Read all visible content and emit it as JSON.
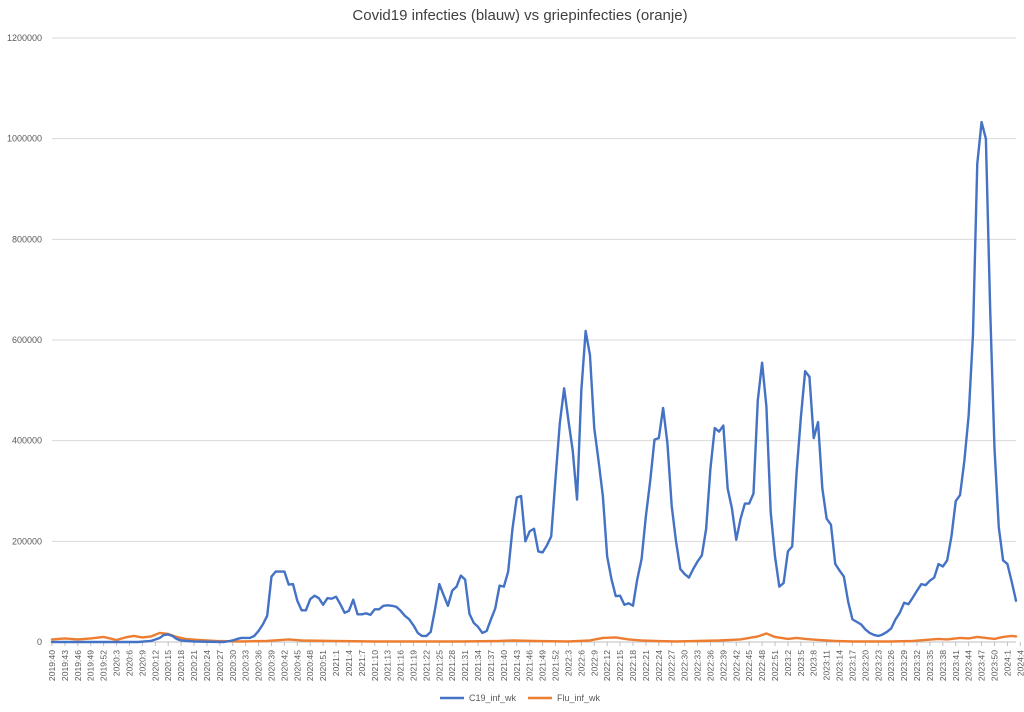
{
  "chart_data": {
    "type": "line",
    "title": "Covid19 infecties (blauw) vs griepinfecties (oranje)",
    "xlabel": "",
    "ylabel": "",
    "ylim": [
      0,
      1200000
    ],
    "yticks": [
      "0",
      "200000",
      "400000",
      "600000",
      "800000",
      "1000000",
      "1200000"
    ],
    "grid": true,
    "legend_position": "bottom",
    "x_tick_labels": [
      "2019:40",
      "2019:43",
      "2019:46",
      "2019:49",
      "2019:52",
      "2020:3",
      "2020:6",
      "2020:9",
      "2020:12",
      "2020:15",
      "2020:18",
      "2020:21",
      "2020:24",
      "2020:27",
      "2020:30",
      "2020:33",
      "2020:36",
      "2020:39",
      "2020:42",
      "2020:45",
      "2020:48",
      "2020:51",
      "2021:1",
      "2021:4",
      "2021:7",
      "2021:10",
      "2021:13",
      "2021:16",
      "2021:19",
      "2021:22",
      "2021:25",
      "2021:28",
      "2021:31",
      "2021:34",
      "2021:37",
      "2021:40",
      "2021:43",
      "2021:46",
      "2021:49",
      "2021:52",
      "2022:3",
      "2022:6",
      "2022:9",
      "2022:12",
      "2022:15",
      "2022:18",
      "2022:21",
      "2022:24",
      "2022:27",
      "2022:30",
      "2022:33",
      "2022:36",
      "2022:39",
      "2022:42",
      "2022:45",
      "2022:48",
      "2022:51",
      "2023:2",
      "2023:5",
      "2023:8",
      "2023:11",
      "2023:14",
      "2023:17",
      "2023:20",
      "2023:23",
      "2023:26",
      "2023:29",
      "2023:32",
      "2023:35",
      "2023:38",
      "2023:41",
      "2023:44",
      "2023:47",
      "2023:50",
      "2024:1",
      "2024:4"
    ],
    "series": [
      {
        "name": "C19_inf_wk",
        "color": "#4472C4",
        "points": [
          [
            0,
            0
          ],
          [
            20,
            0
          ],
          [
            23,
            2000
          ],
          [
            25,
            8000
          ],
          [
            26,
            14000
          ],
          [
            27,
            15000
          ],
          [
            28,
            12000
          ],
          [
            29,
            6000
          ],
          [
            30,
            3000
          ],
          [
            33,
            1000
          ],
          [
            40,
            0
          ],
          [
            42,
            3000
          ],
          [
            43,
            6000
          ],
          [
            44,
            8000
          ],
          [
            46,
            8000
          ],
          [
            47,
            12000
          ],
          [
            48,
            22000
          ],
          [
            49,
            35000
          ],
          [
            50,
            52000
          ],
          [
            51,
            130000
          ],
          [
            52,
            140000
          ],
          [
            54,
            140000
          ],
          [
            55,
            114000
          ],
          [
            56,
            115000
          ],
          [
            57,
            82000
          ],
          [
            58,
            63000
          ],
          [
            59,
            63000
          ],
          [
            60,
            85000
          ],
          [
            61,
            92000
          ],
          [
            62,
            87000
          ],
          [
            63,
            74000
          ],
          [
            64,
            87000
          ],
          [
            65,
            86000
          ],
          [
            66,
            90000
          ],
          [
            67,
            75000
          ],
          [
            68,
            58000
          ],
          [
            69,
            62000
          ],
          [
            70,
            84000
          ],
          [
            71,
            55000
          ],
          [
            72,
            55000
          ],
          [
            73,
            57000
          ],
          [
            74,
            54000
          ],
          [
            75,
            65000
          ],
          [
            76,
            65000
          ],
          [
            77,
            72000
          ],
          [
            78,
            73000
          ],
          [
            79,
            72000
          ],
          [
            80,
            70000
          ],
          [
            81,
            62000
          ],
          [
            82,
            52000
          ],
          [
            83,
            45000
          ],
          [
            84,
            33000
          ],
          [
            85,
            18000
          ],
          [
            86,
            12000
          ],
          [
            87,
            12000
          ],
          [
            88,
            20000
          ],
          [
            89,
            65000
          ],
          [
            90,
            115000
          ],
          [
            91,
            93000
          ],
          [
            92,
            72000
          ],
          [
            93,
            102000
          ],
          [
            94,
            110000
          ],
          [
            95,
            132000
          ],
          [
            96,
            124000
          ],
          [
            97,
            56000
          ],
          [
            98,
            38000
          ],
          [
            99,
            30000
          ],
          [
            100,
            18000
          ],
          [
            101,
            22000
          ],
          [
            102,
            45000
          ],
          [
            103,
            67000
          ],
          [
            104,
            112000
          ],
          [
            105,
            110000
          ],
          [
            106,
            140000
          ],
          [
            107,
            225000
          ],
          [
            108,
            287000
          ],
          [
            109,
            290000
          ],
          [
            110,
            200000
          ],
          [
            111,
            220000
          ],
          [
            112,
            225000
          ],
          [
            113,
            180000
          ],
          [
            114,
            178000
          ],
          [
            115,
            192000
          ],
          [
            116,
            210000
          ],
          [
            117,
            325000
          ],
          [
            118,
            435000
          ],
          [
            119,
            504000
          ],
          [
            120,
            440000
          ],
          [
            121,
            380000
          ],
          [
            122,
            283000
          ],
          [
            123,
            500000
          ],
          [
            124,
            618000
          ],
          [
            125,
            570000
          ],
          [
            126,
            425000
          ],
          [
            127,
            360000
          ],
          [
            128,
            290000
          ],
          [
            129,
            170000
          ],
          [
            130,
            125000
          ],
          [
            131,
            91000
          ],
          [
            132,
            92000
          ],
          [
            133,
            74000
          ],
          [
            134,
            77000
          ],
          [
            135,
            72000
          ],
          [
            136,
            125000
          ],
          [
            137,
            165000
          ],
          [
            138,
            250000
          ],
          [
            139,
            320000
          ],
          [
            140,
            402000
          ],
          [
            141,
            405000
          ],
          [
            142,
            465000
          ],
          [
            143,
            395000
          ],
          [
            144,
            270000
          ],
          [
            145,
            200000
          ],
          [
            146,
            145000
          ],
          [
            147,
            135000
          ],
          [
            148,
            128000
          ],
          [
            149,
            145000
          ],
          [
            150,
            160000
          ],
          [
            151,
            172000
          ],
          [
            152,
            225000
          ],
          [
            153,
            345000
          ],
          [
            154,
            425000
          ],
          [
            155,
            418000
          ],
          [
            156,
            430000
          ],
          [
            157,
            305000
          ],
          [
            158,
            265000
          ],
          [
            159,
            203000
          ],
          [
            160,
            245000
          ],
          [
            161,
            275000
          ],
          [
            162,
            275000
          ],
          [
            163,
            295000
          ],
          [
            164,
            480000
          ],
          [
            165,
            555000
          ],
          [
            166,
            468000
          ],
          [
            167,
            258000
          ],
          [
            168,
            170000
          ],
          [
            169,
            110000
          ],
          [
            170,
            117000
          ],
          [
            171,
            180000
          ],
          [
            172,
            190000
          ],
          [
            173,
            335000
          ],
          [
            174,
            445000
          ],
          [
            175,
            538000
          ],
          [
            176,
            527000
          ],
          [
            177,
            405000
          ],
          [
            178,
            437000
          ],
          [
            179,
            305000
          ],
          [
            180,
            245000
          ],
          [
            181,
            233000
          ],
          [
            182,
            155000
          ],
          [
            183,
            142000
          ],
          [
            184,
            130000
          ],
          [
            185,
            80000
          ],
          [
            186,
            45000
          ],
          [
            187,
            40000
          ],
          [
            188,
            35000
          ],
          [
            189,
            25000
          ],
          [
            190,
            18000
          ],
          [
            191,
            14000
          ],
          [
            192,
            12000
          ],
          [
            193,
            15000
          ],
          [
            194,
            20000
          ],
          [
            195,
            27000
          ],
          [
            196,
            45000
          ],
          [
            197,
            58000
          ],
          [
            198,
            78000
          ],
          [
            199,
            75000
          ],
          [
            200,
            88000
          ],
          [
            201,
            102000
          ],
          [
            202,
            115000
          ],
          [
            203,
            113000
          ],
          [
            204,
            122000
          ],
          [
            205,
            128000
          ],
          [
            206,
            155000
          ],
          [
            207,
            150000
          ],
          [
            208,
            162000
          ],
          [
            209,
            210000
          ],
          [
            210,
            280000
          ],
          [
            211,
            292000
          ],
          [
            212,
            360000
          ],
          [
            213,
            450000
          ],
          [
            214,
            610000
          ],
          [
            215,
            950000
          ],
          [
            216,
            1033000
          ],
          [
            217,
            1000000
          ],
          [
            218,
            660000
          ],
          [
            219,
            385000
          ],
          [
            220,
            228000
          ],
          [
            221,
            162000
          ],
          [
            222,
            155000
          ],
          [
            223,
            120000
          ],
          [
            224,
            82000
          ]
        ]
      },
      {
        "name": "Flu_inf_wk",
        "color": "#ED7D31",
        "points": [
          [
            0,
            5000
          ],
          [
            3,
            7000
          ],
          [
            6,
            5000
          ],
          [
            9,
            7000
          ],
          [
            12,
            10000
          ],
          [
            15,
            4000
          ],
          [
            17,
            9000
          ],
          [
            19,
            12000
          ],
          [
            21,
            9000
          ],
          [
            23,
            11000
          ],
          [
            25,
            18000
          ],
          [
            27,
            16000
          ],
          [
            29,
            10000
          ],
          [
            31,
            6000
          ],
          [
            34,
            4000
          ],
          [
            38,
            2000
          ],
          [
            44,
            1000
          ],
          [
            50,
            2000
          ],
          [
            55,
            5000
          ],
          [
            58,
            3000
          ],
          [
            65,
            2000
          ],
          [
            75,
            1000
          ],
          [
            85,
            1000
          ],
          [
            95,
            1000
          ],
          [
            104,
            2000
          ],
          [
            107,
            3000
          ],
          [
            112,
            2000
          ],
          [
            120,
            1000
          ],
          [
            125,
            3000
          ],
          [
            128,
            8000
          ],
          [
            131,
            9000
          ],
          [
            134,
            5000
          ],
          [
            137,
            3000
          ],
          [
            140,
            2000
          ],
          [
            145,
            1000
          ],
          [
            150,
            2000
          ],
          [
            155,
            3000
          ],
          [
            160,
            5000
          ],
          [
            164,
            11000
          ],
          [
            166,
            17000
          ],
          [
            168,
            10000
          ],
          [
            171,
            6000
          ],
          [
            173,
            8000
          ],
          [
            175,
            6000
          ],
          [
            178,
            4000
          ],
          [
            182,
            2000
          ],
          [
            186,
            1000
          ],
          [
            190,
            1000
          ],
          [
            195,
            1000
          ],
          [
            200,
            2000
          ],
          [
            203,
            4000
          ],
          [
            206,
            6000
          ],
          [
            208,
            5000
          ],
          [
            211,
            8000
          ],
          [
            213,
            7000
          ],
          [
            215,
            10000
          ],
          [
            217,
            8000
          ],
          [
            219,
            6000
          ],
          [
            221,
            10000
          ],
          [
            223,
            12000
          ],
          [
            224,
            11000
          ]
        ]
      }
    ]
  }
}
